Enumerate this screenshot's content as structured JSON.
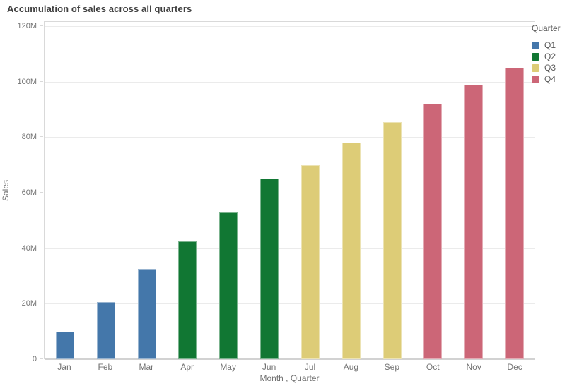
{
  "title": "Accumulation of sales across all quarters",
  "axes": {
    "y_label": "Sales",
    "x_label": "Month , Quarter"
  },
  "legend": {
    "title": "Quarter",
    "items": [
      {
        "label": "Q1",
        "color": "#4477aa"
      },
      {
        "label": "Q2",
        "color": "#117733"
      },
      {
        "label": "Q3",
        "color": "#ddcc77"
      },
      {
        "label": "Q4",
        "color": "#cc6677"
      }
    ]
  },
  "chart_data": {
    "type": "bar",
    "title": "Accumulation of sales across all quarters",
    "xlabel": "Month , Quarter",
    "ylabel": "Sales",
    "categories": [
      "Jan",
      "Feb",
      "Mar",
      "Apr",
      "May",
      "Jun",
      "Jul",
      "Aug",
      "Sep",
      "Oct",
      "Nov",
      "Dec"
    ],
    "values_millions": [
      10,
      20.5,
      32.5,
      42.5,
      53,
      65,
      70,
      78,
      85.5,
      92,
      99,
      105
    ],
    "unit": "M",
    "groups": [
      "Q1",
      "Q1",
      "Q1",
      "Q2",
      "Q2",
      "Q2",
      "Q3",
      "Q3",
      "Q3",
      "Q4",
      "Q4",
      "Q4"
    ],
    "group_colors": {
      "Q1": "#4477aa",
      "Q2": "#117733",
      "Q3": "#ddcc77",
      "Q4": "#cc6677"
    },
    "ylim_millions": [
      0,
      120
    ],
    "y_tick_step_millions": 20,
    "y_tick_labels": [
      "0",
      "20M",
      "40M",
      "60M",
      "80M",
      "100M",
      "120M"
    ],
    "grid": true,
    "legend_position": "top-right"
  }
}
